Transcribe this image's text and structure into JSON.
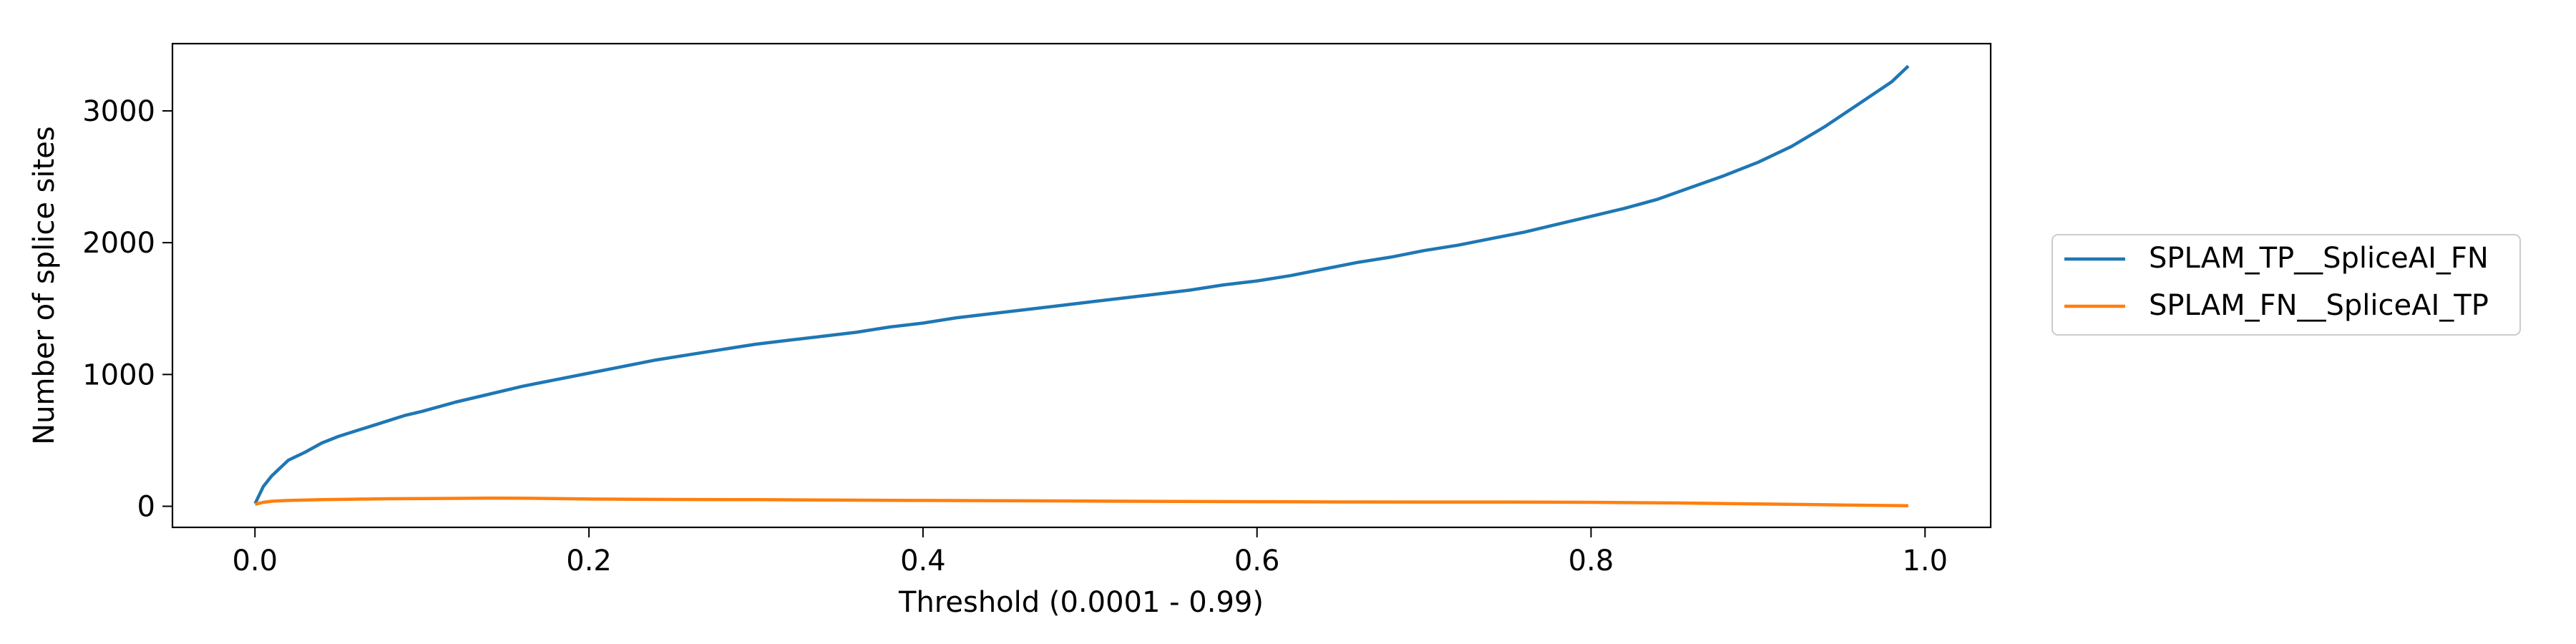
{
  "chart_data": {
    "type": "line",
    "title": "",
    "xlabel": "Threshold (0.0001 - 0.99)",
    "ylabel": "Number of splice sites",
    "xlim": [
      -0.0494,
      1.0393
    ],
    "ylim": [
      -160,
      3510
    ],
    "xticks": [
      0.0,
      0.2,
      0.4,
      0.6,
      0.8,
      1.0
    ],
    "xtick_labels": [
      "0.0",
      "0.2",
      "0.4",
      "0.6",
      "0.8",
      "1.0"
    ],
    "yticks": [
      0,
      1000,
      2000,
      3000
    ],
    "ytick_labels": [
      "0",
      "1000",
      "2000",
      "3000"
    ],
    "grid": false,
    "legend_position": "outside-right",
    "series": [
      {
        "name": "SPLAM_TP__SpliceAI_FN",
        "color": "#1f77b4",
        "x": [
          0.0001,
          0.005,
          0.01,
          0.02,
          0.03,
          0.04,
          0.05,
          0.06,
          0.07,
          0.08,
          0.09,
          0.1,
          0.12,
          0.14,
          0.16,
          0.18,
          0.2,
          0.22,
          0.24,
          0.26,
          0.28,
          0.3,
          0.32,
          0.34,
          0.36,
          0.38,
          0.4,
          0.42,
          0.44,
          0.46,
          0.48,
          0.5,
          0.52,
          0.54,
          0.56,
          0.58,
          0.6,
          0.62,
          0.64,
          0.66,
          0.68,
          0.7,
          0.72,
          0.74,
          0.76,
          0.78,
          0.8,
          0.82,
          0.84,
          0.86,
          0.88,
          0.9,
          0.92,
          0.94,
          0.96,
          0.98,
          0.99
        ],
        "y": [
          20,
          150,
          230,
          350,
          410,
          480,
          530,
          570,
          610,
          650,
          690,
          720,
          790,
          850,
          910,
          960,
          1010,
          1060,
          1110,
          1150,
          1190,
          1230,
          1260,
          1290,
          1320,
          1360,
          1390,
          1430,
          1460,
          1490,
          1520,
          1550,
          1580,
          1610,
          1640,
          1680,
          1710,
          1750,
          1800,
          1850,
          1890,
          1940,
          1980,
          2030,
          2080,
          2140,
          2200,
          2260,
          2330,
          2420,
          2510,
          2610,
          2730,
          2880,
          3050,
          3220,
          3340
        ]
      },
      {
        "name": "SPLAM_FN__SpliceAI_TP",
        "color": "#ff7f0e",
        "x": [
          0.0001,
          0.005,
          0.01,
          0.02,
          0.04,
          0.06,
          0.08,
          0.1,
          0.12,
          0.14,
          0.16,
          0.18,
          0.2,
          0.25,
          0.3,
          0.35,
          0.4,
          0.45,
          0.5,
          0.55,
          0.6,
          0.65,
          0.7,
          0.75,
          0.8,
          0.85,
          0.9,
          0.95,
          0.99
        ],
        "y": [
          15,
          30,
          38,
          44,
          50,
          54,
          57,
          58,
          60,
          62,
          61,
          58,
          55,
          52,
          50,
          47,
          44,
          42,
          39,
          37,
          35,
          33,
          32,
          32,
          30,
          25,
          18,
          10,
          4
        ]
      }
    ]
  }
}
